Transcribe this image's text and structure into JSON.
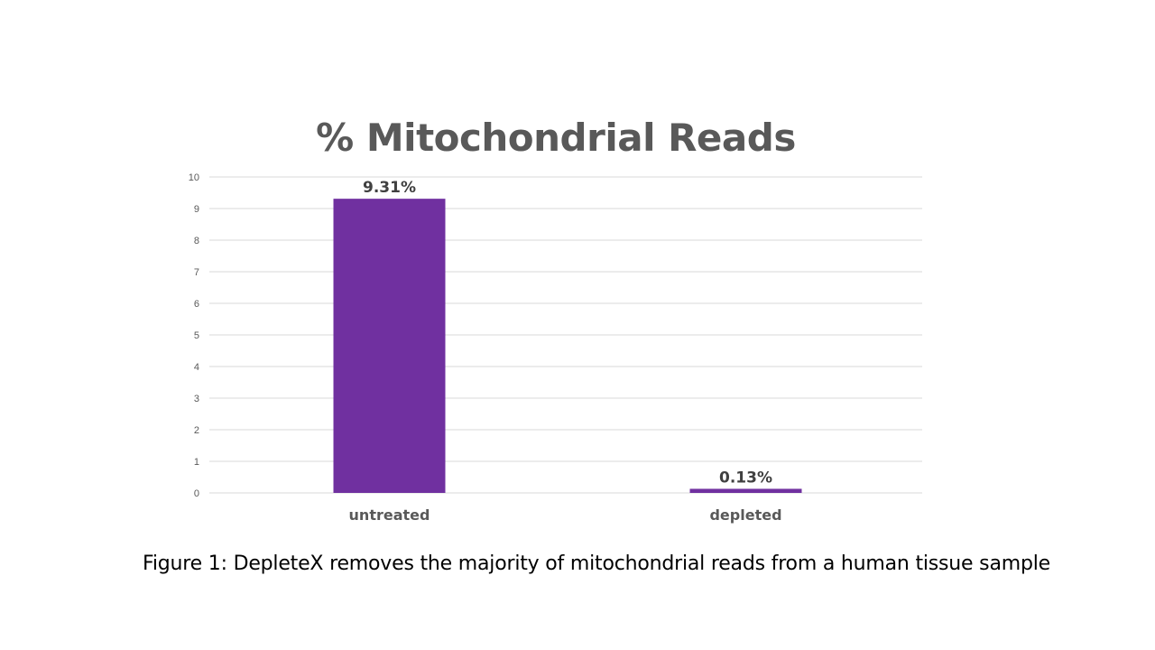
{
  "chart_data": {
    "type": "bar",
    "title": "% Mitochondrial Reads",
    "categories": [
      "untreated",
      "depleted"
    ],
    "values": [
      9.31,
      0.13
    ],
    "data_labels": [
      "9.31%",
      "0.13%"
    ],
    "ylim": [
      0,
      10
    ],
    "yticks": [
      0,
      1,
      2,
      3,
      4,
      5,
      6,
      7,
      8,
      9,
      10
    ],
    "grid": true,
    "legend": "none",
    "bar_color": "#7030A0",
    "xlabel": "",
    "ylabel": ""
  },
  "caption": "Figure 1: DepleteX removes the majority of mitochondrial reads from a human tissue sample"
}
